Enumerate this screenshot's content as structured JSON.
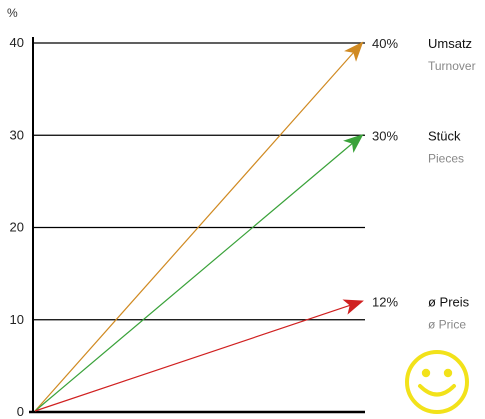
{
  "chart_data": {
    "type": "line",
    "ylabel": "%",
    "ylim": [
      0,
      40
    ],
    "yticks": [
      0,
      10,
      20,
      30,
      40
    ],
    "grid": true,
    "series": [
      {
        "name": "Umsatz",
        "subname": "Turnover",
        "start": 0,
        "end": 40,
        "end_label": "40%",
        "color": "#d08a22"
      },
      {
        "name": "Stück",
        "subname": "Pieces",
        "start": 0,
        "end": 30,
        "end_label": "30%",
        "color": "#3aa23a"
      },
      {
        "name": "ø Preis",
        "subname": "ø Price",
        "start": 0,
        "end": 12,
        "end_label": "12%",
        "color": "#d02020"
      }
    ],
    "decoration": {
      "icon": "smiley-icon",
      "color": "#f2e21a"
    }
  }
}
